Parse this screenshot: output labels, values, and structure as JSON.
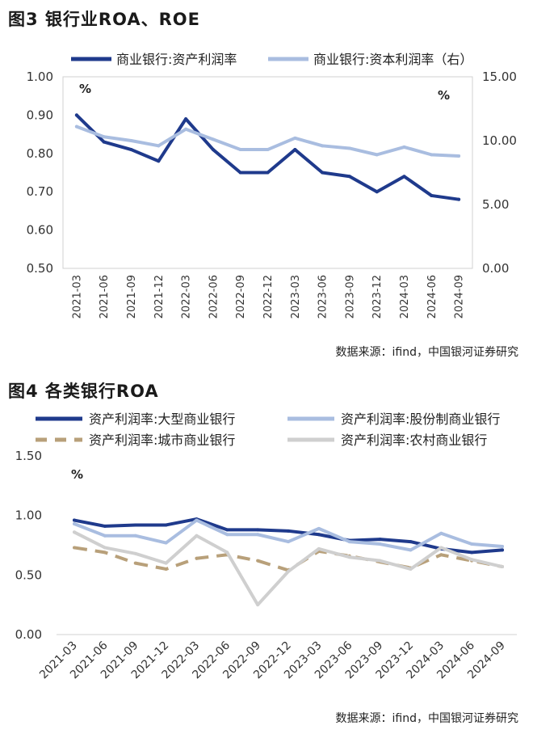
{
  "figures": [
    {
      "title": "图3  银行业ROA、ROE",
      "source": "数据来源：ifind，中国银河证券研究"
    },
    {
      "title": "图4  各类银行ROA",
      "source": "数据来源：ifind，中国银河证券研究"
    }
  ],
  "chart_data": [
    {
      "type": "line",
      "title": "图3  银行业ROA、ROE",
      "x": [
        "2021-03",
        "2021-06",
        "2021-09",
        "2021-12",
        "2022-03",
        "2022-06",
        "2022-09",
        "2022-12",
        "2023-03",
        "2023-06",
        "2023-09",
        "2023-12",
        "2024-03",
        "2024-06",
        "2024-09"
      ],
      "left_unit": "%",
      "right_unit": "%",
      "ylim_left": [
        0.5,
        1.0
      ],
      "yticks_left": [
        "0.50",
        "0.60",
        "0.70",
        "0.80",
        "0.90",
        "1.00"
      ],
      "ylim_right": [
        0,
        15
      ],
      "yticks_right": [
        "0.00",
        "5.00",
        "10.00",
        "15.00"
      ],
      "grid": false,
      "legend": "top",
      "series": [
        {
          "name": "商业银行:资产利润率",
          "axis": "left",
          "color": "#1f3a8c",
          "style": "solid",
          "values": [
            0.9,
            0.83,
            0.81,
            0.78,
            0.89,
            0.81,
            0.75,
            0.75,
            0.81,
            0.75,
            0.74,
            0.7,
            0.74,
            0.69,
            0.68
          ]
        },
        {
          "name": "商业银行:资本利润率（右）",
          "axis": "right",
          "color": "#a9bde0",
          "style": "solid",
          "values": [
            11.1,
            10.3,
            10.0,
            9.6,
            10.9,
            10.1,
            9.3,
            9.3,
            10.2,
            9.6,
            9.4,
            8.9,
            9.5,
            8.9,
            8.8
          ]
        }
      ]
    },
    {
      "type": "line",
      "title": "图4  各类银行ROA",
      "x": [
        "2021-03",
        "2021-06",
        "2021-09",
        "2021-12",
        "2022-03",
        "2022-06",
        "2022-09",
        "2022-12",
        "2023-03",
        "2023-06",
        "2023-09",
        "2023-12",
        "2024-03",
        "2024-06",
        "2024-09"
      ],
      "unit": "%",
      "ylim": [
        0,
        1.5
      ],
      "yticks": [
        "0.00",
        "0.50",
        "1.00",
        "1.50"
      ],
      "grid": false,
      "legend": "top",
      "series": [
        {
          "name": "资产利润率:大型商业银行",
          "color": "#1f3a8c",
          "style": "solid",
          "values": [
            0.96,
            0.91,
            0.92,
            0.92,
            0.97,
            0.88,
            0.88,
            0.87,
            0.84,
            0.79,
            0.8,
            0.78,
            0.72,
            0.69,
            0.71
          ]
        },
        {
          "name": "资产利润率:股份制商业银行",
          "color": "#a9bde0",
          "style": "solid",
          "values": [
            0.93,
            0.83,
            0.83,
            0.77,
            0.96,
            0.84,
            0.84,
            0.78,
            0.89,
            0.78,
            0.76,
            0.71,
            0.85,
            0.76,
            0.74
          ]
        },
        {
          "name": "资产利润率:城市商业银行",
          "color": "#b8a07a",
          "style": "dashed",
          "values": [
            0.73,
            0.69,
            0.6,
            0.55,
            0.64,
            0.67,
            0.62,
            0.54,
            0.7,
            0.66,
            0.61,
            0.56,
            0.67,
            0.62,
            0.57
          ]
        },
        {
          "name": "资产利润率:农村商业银行",
          "color": "#cfcfcf",
          "style": "solid",
          "values": [
            0.86,
            0.73,
            0.68,
            0.6,
            0.83,
            0.69,
            0.25,
            0.53,
            0.72,
            0.65,
            0.62,
            0.55,
            0.73,
            0.63,
            0.57
          ]
        }
      ]
    }
  ]
}
